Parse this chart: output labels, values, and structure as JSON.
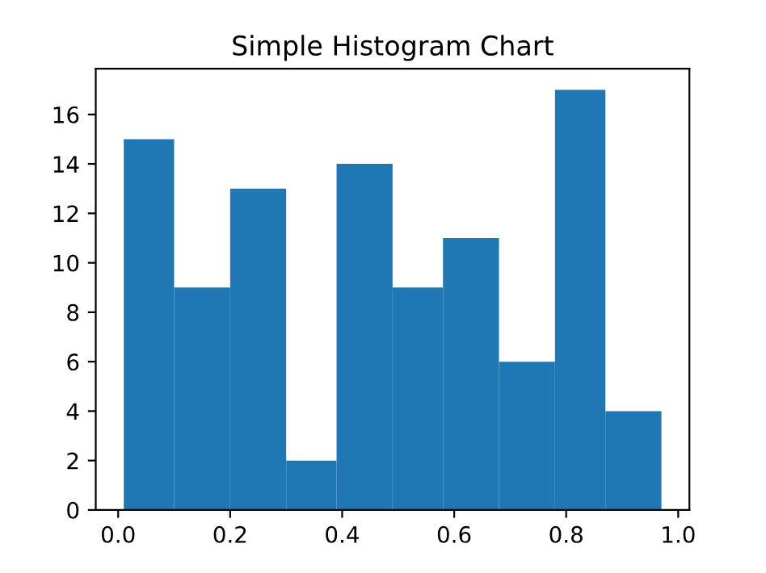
{
  "chart_data": {
    "type": "histogram",
    "title": "Simple Histogram Chart",
    "bins": [
      0.01,
      0.1,
      0.2,
      0.3,
      0.39,
      0.49,
      0.58,
      0.68,
      0.78,
      0.87,
      0.97
    ],
    "values": [
      15,
      9,
      13,
      2,
      14,
      9,
      11,
      6,
      17,
      4
    ],
    "color": "#1f77b4",
    "xlim": [
      -0.04,
      1.02
    ],
    "ylim": [
      0,
      17.85
    ],
    "xticks": [
      {
        "value": 0,
        "label": "0.0"
      },
      0.2,
      0.4,
      0.6,
      0.8,
      {
        "value": 1,
        "label": "1.0"
      }
    ],
    "yticks": [
      0,
      2,
      4,
      6,
      8,
      10,
      12,
      14,
      16
    ],
    "grid": false
  }
}
